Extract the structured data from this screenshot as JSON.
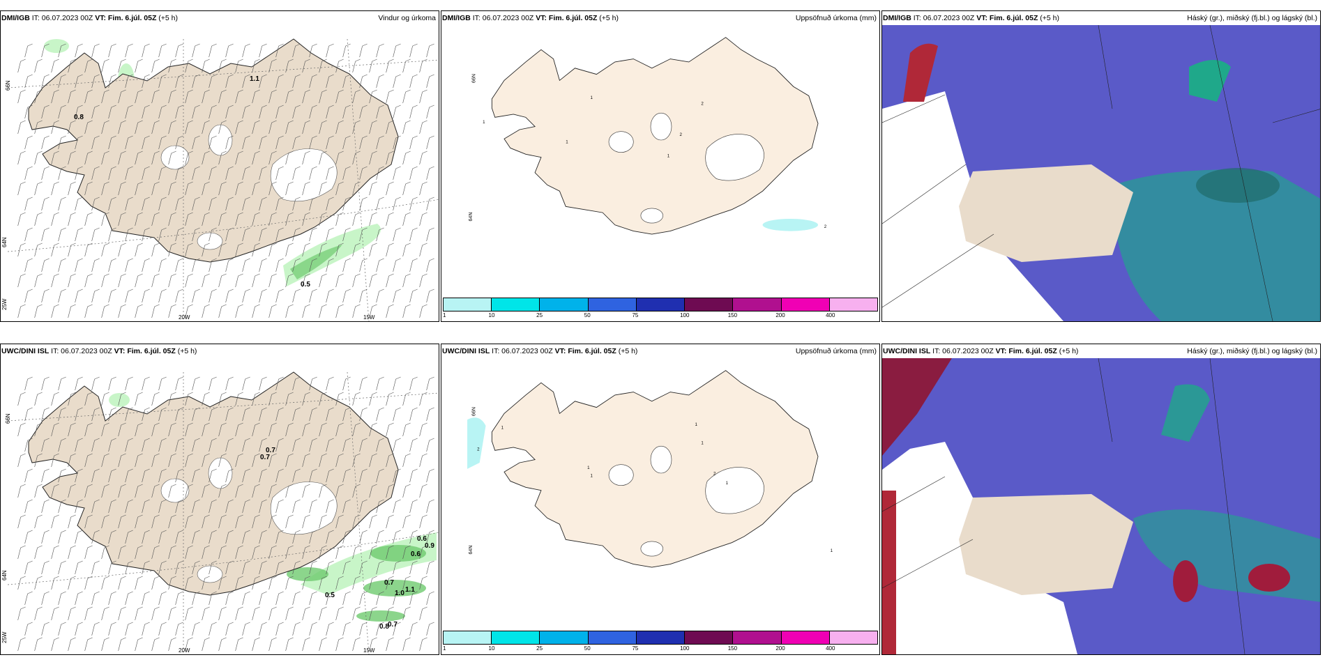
{
  "panels": [
    {
      "source": "DMI/IGB",
      "it": "IT: 06.07.2023 00Z",
      "vt": "VT: Fim. 6.júl. 05Z",
      "offset": "(+5 h)",
      "title": "Vindur og úrkoma",
      "kind": "wind",
      "values": [
        "0.8",
        "1.1",
        "0.5"
      ],
      "lat1": "66N",
      "lat2": "64N",
      "lon1": "20W",
      "lon2": "15W",
      "corner": "25W"
    },
    {
      "source": "DMI/IGB",
      "it": "IT: 06.07.2023 00Z",
      "vt": "VT: Fim. 6.júl. 05Z",
      "offset": "(+5 h)",
      "title": "Uppsöfnuð úrkoma (mm)",
      "kind": "precip",
      "values": [
        "1",
        "1",
        "1",
        "2",
        "2",
        "1",
        "2"
      ],
      "lat1": "66N",
      "lat2": "64N"
    },
    {
      "source": "DMI/IGB",
      "it": "IT: 06.07.2023 00Z",
      "vt": "VT: Fim. 6.júl. 05Z",
      "offset": "(+5 h)",
      "title": "Háský (gr.), miðský (fj.bl.) og lágský (bl.)",
      "kind": "cloud"
    },
    {
      "source": "UWC/DINI ISL",
      "it": "IT: 06.07.2023 00Z",
      "vt": "VT: Fim. 6.júl. 05Z",
      "offset": "(+5 h)",
      "title": "",
      "kind": "wind",
      "values": [
        "0.7",
        "0.7",
        "0.6",
        "0.9",
        "0.6",
        "0.5",
        "0.7",
        "1.0",
        "1.1",
        "0.8",
        "0.7"
      ],
      "lat1": "66N",
      "lat2": "64N",
      "lon1": "20W",
      "lon2": "15W",
      "corner": "25W"
    },
    {
      "source": "UWC/DINI ISL",
      "it": "IT: 06.07.2023 00Z",
      "vt": "VT: Fim. 6.júl. 05Z",
      "offset": "(+5 h)",
      "title": "Uppsöfnuð úrkoma (mm)",
      "kind": "precip",
      "values": [
        "2",
        "1",
        "1",
        "1",
        "1",
        "1",
        "2",
        "1",
        "1"
      ],
      "lat1": "66N",
      "lat2": "64N"
    },
    {
      "source": "UWC/DINI ISL",
      "it": "IT: 06.07.2023 00Z",
      "vt": "VT: Fim. 6.júl. 05Z",
      "offset": "(+5 h)",
      "title": "Háský (gr.), miðský (fj.bl.) og lágský (bl.)",
      "kind": "cloud"
    }
  ],
  "colorbar": {
    "ticks": [
      "1",
      "10",
      "25",
      "50",
      "75",
      "100",
      "150",
      "200",
      "400"
    ],
    "colors": [
      "#b8f4f4",
      "#00e5e8",
      "#00b2ea",
      "#2f63e0",
      "#1f2fb0",
      "#6e0b52",
      "#b0108f",
      "#f000b4",
      "#f7b0ef"
    ]
  },
  "colors": {
    "land": "#e9dccb",
    "landPrecip": "#faeee0",
    "glacier": "#ffffff",
    "cloudHigh": "#5a5ac8",
    "cloudMid": "#1fa88a",
    "cloudLow": "#b02838",
    "rainLight": "#c8f5c8",
    "rainMid": "#6fcb6f"
  }
}
